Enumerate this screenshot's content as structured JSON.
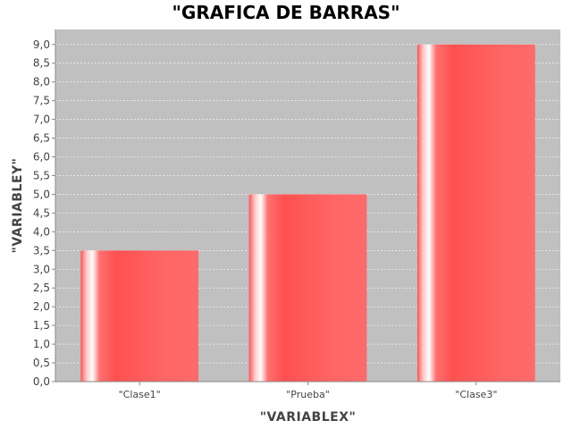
{
  "chart_data": {
    "type": "bar",
    "title": "\"GRAFICA DE BARRAS\"",
    "xlabel": "\"VARIABLEX\"",
    "ylabel": "\"VARIABLEY\"",
    "categories": [
      "\"Clase1\"",
      "\"Prueba\"",
      "\"Clase3\""
    ],
    "values": [
      3.5,
      5.0,
      9.0
    ],
    "ylim": [
      0,
      9.4
    ],
    "yticks": [
      "0,0",
      "0,5",
      "1,0",
      "1,5",
      "2,0",
      "2,5",
      "3,0",
      "3,5",
      "4,0",
      "4,5",
      "5,0",
      "5,5",
      "6,0",
      "6,5",
      "7,0",
      "7,5",
      "8,0",
      "8,5",
      "9,0"
    ],
    "ytick_values": [
      0,
      0.5,
      1,
      1.5,
      2,
      2.5,
      3,
      3.5,
      4,
      4.5,
      5,
      5.5,
      6,
      6.5,
      7,
      7.5,
      8,
      8.5,
      9
    ],
    "grid": true,
    "colors": {
      "plot_background": "#c0c0c0",
      "bar": "#ff5555",
      "grid": "#ffffff"
    }
  }
}
